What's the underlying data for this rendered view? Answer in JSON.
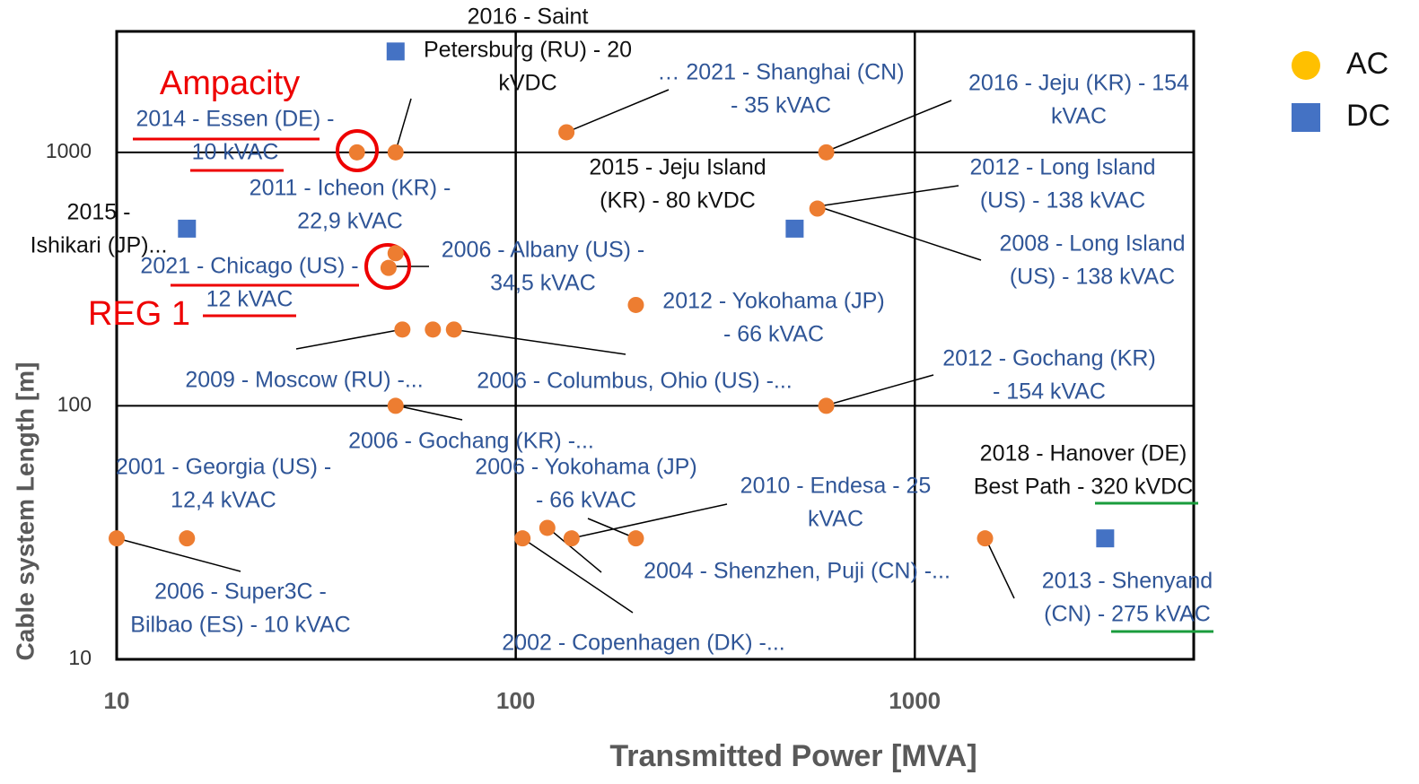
{
  "chart_data": {
    "type": "scatter",
    "x_label": "Transmitted Power [MVA]",
    "y_label": "Cable system Length [m]",
    "log_x": true,
    "log_y": true,
    "grid": true,
    "xlim": [
      10,
      5000
    ],
    "ylim": [
      10,
      3000
    ],
    "xticks": [
      10,
      100,
      1000
    ],
    "yticks": [
      10,
      100,
      1000
    ],
    "legend": "right",
    "series": [
      {
        "name": "AC",
        "color": "#ed7d31",
        "legend_color": "#ffc000",
        "marker": "circle",
        "x": [
          10,
          15,
          40,
          50,
          134,
          600,
          570,
          50,
          48,
          52,
          62,
          70,
          200,
          50,
          600,
          104,
          120,
          138,
          200,
          1500
        ],
        "values": [
          30,
          30,
          1000,
          1000,
          1200,
          1000,
          600,
          400,
          350,
          200,
          200,
          200,
          250,
          100,
          100,
          30,
          33,
          30,
          30,
          30
        ]
      },
      {
        "name": "DC",
        "color": "#4472c4",
        "marker": "square",
        "x": [
          50,
          15,
          500,
          3000
        ],
        "values": [
          2500,
          500,
          500,
          30
        ]
      }
    ],
    "annotations": [
      [
        "2016 - Saint",
        "Petersburg (RU) - 20",
        "kVDC"
      ],
      [
        "… 2021 - Shanghai (CN)",
        "- 35 kVAC"
      ],
      [
        "2016 - Jeju (KR) - 154",
        "kVAC"
      ],
      [
        "2014 - Essen (DE) -",
        "10 kVAC"
      ],
      [
        "2015 - Jeju Island",
        "(KR) - 80 kVDC"
      ],
      [
        "2012 - Long Island",
        "(US) - 138 kVAC"
      ],
      [
        "2011 - Icheon (KR) -",
        "22,9 kVAC"
      ],
      [
        "2015 -",
        "Ishikari (JP)..."
      ],
      [
        "2008 - Long Island",
        "(US) - 138 kVAC"
      ],
      [
        "2006 - Albany (US) -",
        "34,5 kVAC"
      ],
      [
        "2021 - Chicago (US) -",
        "12 kVAC"
      ],
      [
        "2012 - Yokohama (JP)",
        "- 66 kVAC"
      ],
      [
        "2009 - Moscow (RU) -..."
      ],
      [
        "2006 - Columbus, Ohio (US) -..."
      ],
      [
        "2012 - Gochang (KR)",
        "- 154 kVAC"
      ],
      [
        "2006 - Gochang (KR) -..."
      ],
      [
        "2018 - Hanover (DE)",
        "Best Path - 320 kVDC"
      ],
      [
        "2001 - Georgia (US) -",
        "12,4 kVAC"
      ],
      [
        "2006 - Yokohama (JP)",
        "- 66 kVAC"
      ],
      [
        "2010 - Endesa - 25",
        "kVAC"
      ],
      [
        "2004 - Shenzhen, Puji (CN) -..."
      ],
      [
        "2013 - Shenyand",
        "(CN) - 275 kVAC"
      ],
      [
        "2006 - Super3C -",
        "Bilbao (ES) - 10 kVAC"
      ],
      [
        "2002 - Copenhagen (DK) -..."
      ]
    ],
    "highlights": [
      "Ampacity",
      "REG 1"
    ]
  }
}
